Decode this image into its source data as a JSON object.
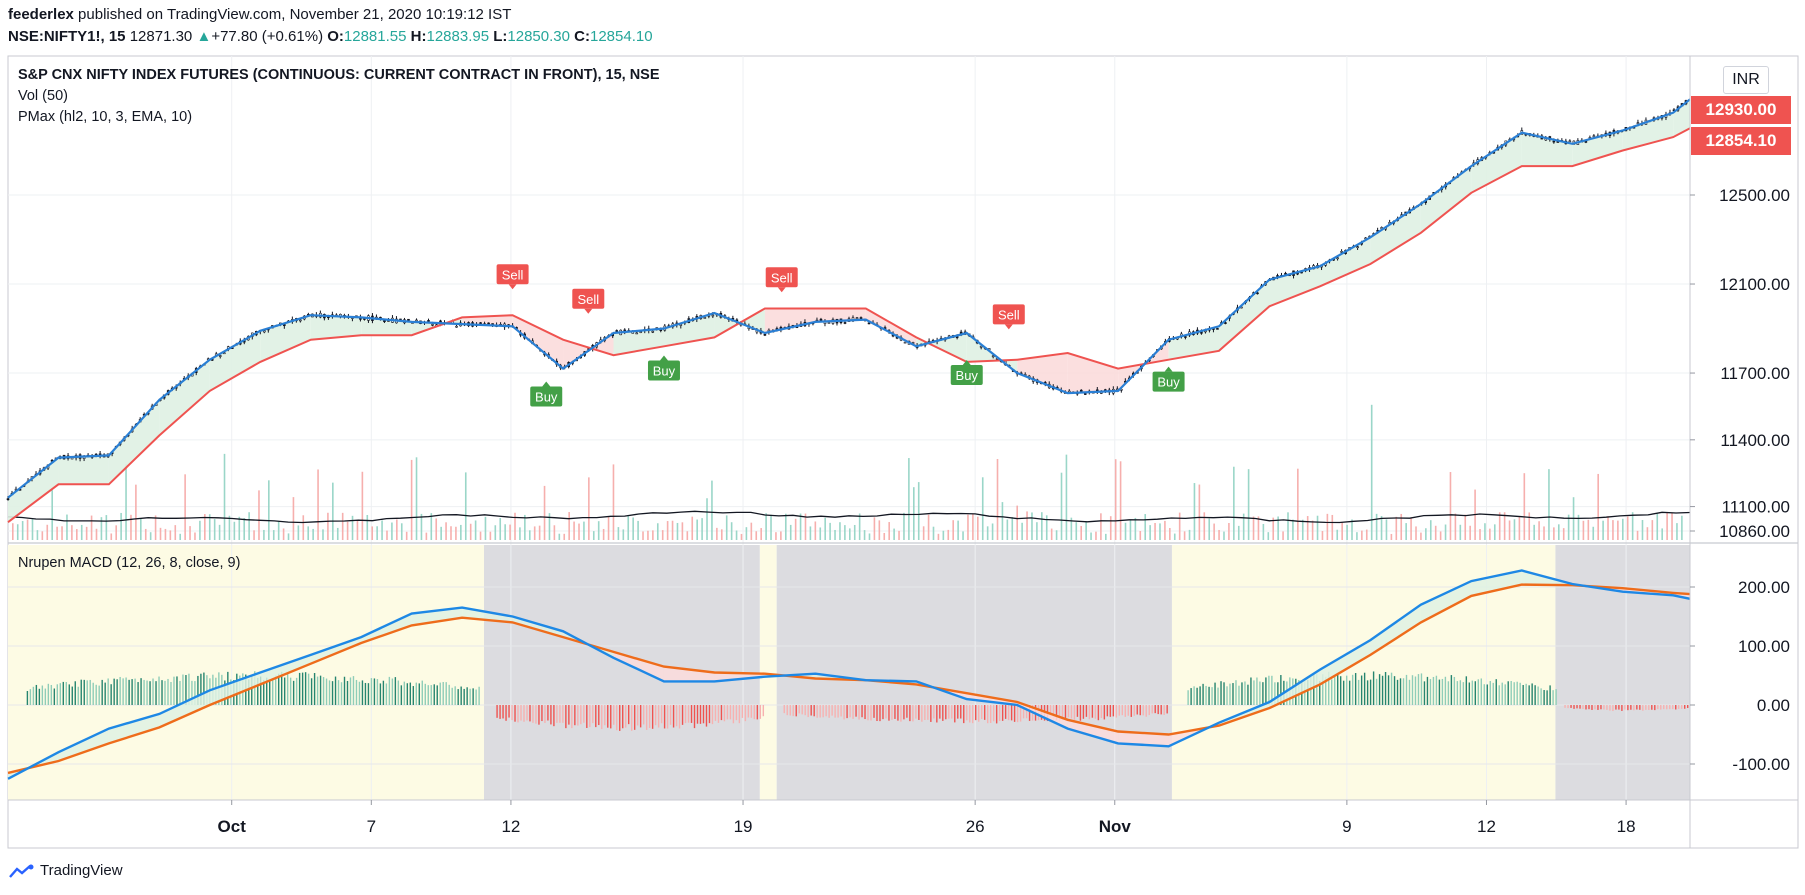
{
  "header": {
    "publisher": "feederlex",
    "published_text": "published on TradingView.com, November 21, 2020 10:19:12 IST",
    "symbol": "NSE:NIFTY1!, 15",
    "last": "12871.30",
    "change": "+77.80 (+0.61%)",
    "o_label": "O:",
    "o_value": "12881.55",
    "h_label": "H:",
    "h_value": "12883.95",
    "l_label": "L:",
    "l_value": "12850.30",
    "c_label": "C:",
    "c_value": "12854.10"
  },
  "main_pane": {
    "title": "S&P CNX NIFTY INDEX FUTURES (CONTINUOUS: CURRENT CONTRACT IN FRONT), 15, NSE",
    "vol_label": "Vol (50)",
    "pmax_label": "PMax (hl2, 10, 3, EMA, 10)",
    "currency_button": "INR",
    "price_tag_1": "12930.00",
    "price_tag_2": "12854.10"
  },
  "macd_pane": {
    "label": "Nrupen MACD (12, 26, 8, close, 9)"
  },
  "footer": {
    "brand": "TradingView"
  },
  "colors": {
    "price_line": "#2a7fd4",
    "pmax_line": "#ef5350",
    "signal_line": "#ee6c1b",
    "macd_line": "#1e88e5",
    "buy": "#43a047",
    "sell": "#ef5350",
    "hist_pos_strong": "#26856f",
    "hist_pos_weak": "#8fcdb8",
    "hist_neg": "#ef5350",
    "bull_bg": "#fdfbe4",
    "bear_bg": "#dcdce0"
  },
  "chart_data": [
    {
      "type": "line",
      "name": "price",
      "y_ticks": [
        12500,
        12100,
        11700,
        11400,
        11100,
        10860
      ],
      "x_ticks": [
        "Oct",
        "7",
        "12",
        "19",
        "26",
        "Nov",
        "9",
        "12",
        "18"
      ],
      "series": [
        {
          "x": [
            0,
            3,
            6,
            9,
            12,
            15,
            18,
            21,
            24,
            27,
            30,
            33,
            36,
            39,
            42,
            45,
            48,
            51,
            54,
            57,
            60,
            63,
            66,
            69,
            72,
            75,
            78,
            81,
            84,
            87,
            90,
            93,
            96,
            99,
            100
          ],
          "values": [
            11140,
            11320,
            11330,
            11580,
            11760,
            11890,
            11960,
            11950,
            11930,
            11920,
            11910,
            11720,
            11880,
            11900,
            11970,
            11880,
            11930,
            11940,
            11820,
            11880,
            11700,
            11610,
            11620,
            11850,
            11910,
            12120,
            12180,
            12310,
            12460,
            12630,
            12780,
            12730,
            12790,
            12870,
            12930
          ]
        },
        {
          "x": [
            0,
            3,
            6,
            9,
            12,
            15,
            18,
            21,
            24,
            27,
            30,
            33,
            36,
            39,
            42,
            45,
            48,
            51,
            54,
            57,
            60,
            63,
            66,
            69,
            72,
            75,
            78,
            81,
            84,
            87,
            90,
            93,
            96,
            99,
            100
          ],
          "values": [
            11030,
            11200,
            11200,
            11420,
            11620,
            11750,
            11850,
            11870,
            11870,
            11950,
            11960,
            11850,
            11780,
            11820,
            11860,
            11990,
            11990,
            11990,
            11860,
            11750,
            11760,
            11790,
            11720,
            11760,
            11800,
            12000,
            12090,
            12190,
            12330,
            12510,
            12630,
            12630,
            12700,
            12760,
            12800
          ]
        }
      ],
      "buy_signals": [
        {
          "x": 32,
          "label": "Buy"
        },
        {
          "x": 39,
          "label": "Buy"
        },
        {
          "x": 57,
          "label": "Buy"
        },
        {
          "x": 69,
          "label": "Buy"
        }
      ],
      "sell_signals": [
        {
          "x": 30,
          "label": "Sell"
        },
        {
          "x": 34.5,
          "label": "Sell"
        },
        {
          "x": 46,
          "label": "Sell"
        },
        {
          "x": 59.5,
          "label": "Sell"
        }
      ]
    },
    {
      "type": "line",
      "name": "macd",
      "y_ticks": [
        200,
        100,
        0,
        -100
      ],
      "series": [
        {
          "x": [
            0,
            3,
            6,
            9,
            12,
            15,
            18,
            21,
            24,
            27,
            30,
            33,
            36,
            39,
            42,
            45,
            48,
            51,
            54,
            57,
            60,
            63,
            66,
            69,
            72,
            75,
            78,
            81,
            84,
            87,
            90,
            93,
            96,
            99,
            100
          ],
          "values": [
            -125,
            -80,
            -40,
            -15,
            25,
            55,
            85,
            115,
            155,
            165,
            150,
            125,
            80,
            40,
            40,
            48,
            53,
            42,
            40,
            10,
            0,
            -40,
            -65,
            -70,
            -30,
            5,
            60,
            110,
            170,
            210,
            228,
            205,
            192,
            186,
            180
          ]
        },
        {
          "x": [
            0,
            3,
            6,
            9,
            12,
            15,
            18,
            21,
            24,
            27,
            30,
            33,
            36,
            39,
            42,
            45,
            48,
            51,
            54,
            57,
            60,
            63,
            66,
            69,
            72,
            75,
            78,
            81,
            84,
            87,
            90,
            93,
            96,
            99,
            100
          ],
          "values": [
            -115,
            -95,
            -65,
            -38,
            0,
            35,
            70,
            105,
            135,
            148,
            140,
            115,
            90,
            65,
            55,
            53,
            45,
            42,
            35,
            20,
            5,
            -25,
            -45,
            -50,
            -35,
            -5,
            35,
            85,
            140,
            185,
            204,
            203,
            198,
            190,
            188
          ]
        }
      ],
      "histogram": [
        {
          "x": [
            1,
            28
          ],
          "sign": "positive"
        },
        {
          "x": [
            29,
            45
          ],
          "sign": "negative"
        },
        {
          "x": [
            46,
            69
          ],
          "sign": "negative"
        },
        {
          "x": [
            70,
            92
          ],
          "sign": "positive"
        },
        {
          "x": [
            92.5,
            100
          ],
          "sign": "negative"
        }
      ],
      "zones": [
        {
          "x": [
            0,
            28.3
          ],
          "state": "bull"
        },
        {
          "x": [
            28.3,
            44.7
          ],
          "state": "bear"
        },
        {
          "x": [
            44.7,
            45.7
          ],
          "state": "bull"
        },
        {
          "x": [
            45.7,
            69.2
          ],
          "state": "bear"
        },
        {
          "x": [
            69.2,
            92.0
          ],
          "state": "bull"
        },
        {
          "x": [
            92.0,
            100
          ],
          "state": "bear"
        }
      ]
    }
  ]
}
